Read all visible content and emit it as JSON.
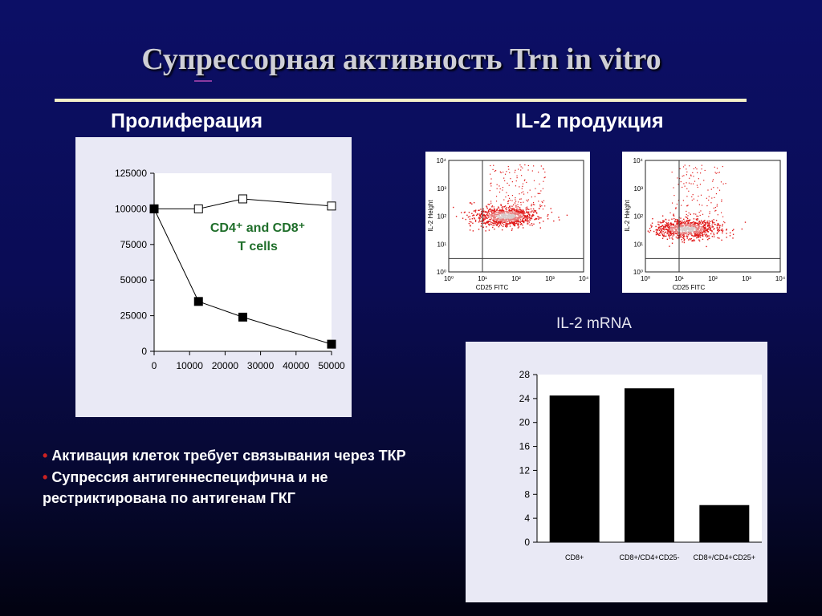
{
  "slide": {
    "title": "Супрессорная активность Trn in vitro",
    "heading_left": "Пролиферация",
    "heading_right": "IL-2 продукция",
    "mrna_title": "IL-2 mRNA",
    "bullets": [
      "Активация клеток требует связывания через ТКР",
      "Супрессия антигеннеспецифична и не рестриктирована по  антигенам ГКГ"
    ],
    "colors": {
      "background": "#0c0f66",
      "title_rule": "#f4f0c8",
      "bullet_marker": "#cc2222",
      "annotation": "#1f6e2a",
      "facs_dots": "#e01818"
    }
  },
  "facs": {
    "x_label": "CD25 FITC",
    "y_label": "IL-2 Height",
    "ticks": [
      "10⁰",
      "10¹",
      "10²",
      "10³",
      "10⁴"
    ],
    "plots": [
      {
        "description_id": "left-plot",
        "gate_x": 10.0,
        "gate_y": 3.0
      },
      {
        "description_id": "right-plot",
        "gate_x": 10.0,
        "gate_y": 3.0
      }
    ]
  },
  "chart_data": [
    {
      "type": "line",
      "x_ticks": [
        "0",
        "10000",
        "20000",
        "30000",
        "40000",
        "50000"
      ],
      "y_ticks": [
        "0",
        "25000",
        "50000",
        "75000",
        "100000",
        "125000"
      ],
      "xlim": [
        0,
        50000
      ],
      "ylim": [
        0,
        125000
      ],
      "annotation": [
        "CD4⁺ and CD8⁺",
        "T cells"
      ],
      "series": [
        {
          "marker": "open-square",
          "x": [
            0,
            12500,
            25000,
            50000
          ],
          "y": [
            100000,
            100000,
            107000,
            102000
          ]
        },
        {
          "marker": "filled-square",
          "x": [
            0,
            12500,
            25000,
            50000
          ],
          "y": [
            100000,
            35000,
            24000,
            5000
          ]
        }
      ]
    },
    {
      "type": "bar",
      "categories": [
        "CD8+",
        "CD8+/CD4+CD25-",
        "CD8+/CD4+CD25+"
      ],
      "values": [
        24.5,
        25.7,
        6.2
      ],
      "y_ticks": [
        "0",
        "4",
        "8",
        "12",
        "16",
        "20",
        "24",
        "28"
      ],
      "ylim": [
        0,
        28
      ],
      "bar_color": "#000000"
    }
  ]
}
